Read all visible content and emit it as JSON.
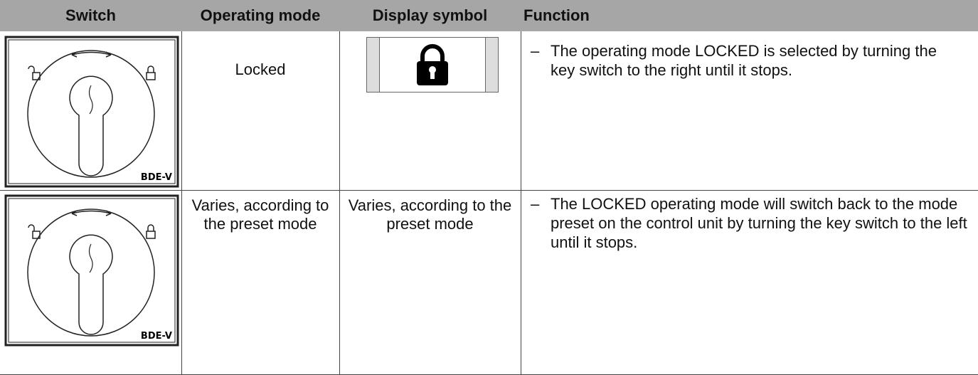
{
  "table": {
    "header": [
      "Switch",
      "Operating mode",
      "Display symbol",
      "Function"
    ],
    "rows": [
      {
        "switch_label": "BDE-V",
        "operating_mode": "Locked",
        "function": "The operating mode LOCKED is selected by turning the key switch to the right until it stops."
      },
      {
        "switch_label": "BDE-V",
        "operating_mode": "Varies, according to the preset mode",
        "display_symbol": "Varies, according to the preset mode",
        "function": "The LOCKED operating mode will switch back to the mode preset on the control unit by turning the key switch to the left until it stops."
      }
    ]
  }
}
